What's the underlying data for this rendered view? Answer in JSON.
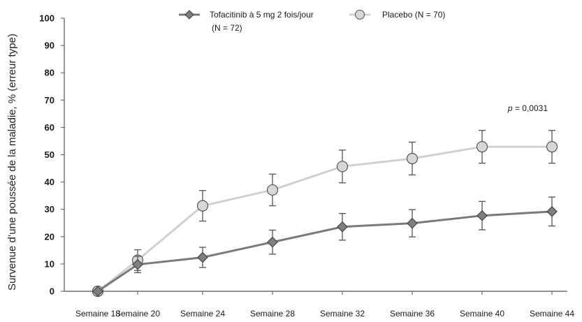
{
  "chart_data": {
    "type": "line",
    "title": "",
    "xlabel": "",
    "ylabel": "Survenue d’une poussée de la maladie, % (erreur type)",
    "ylim": [
      0,
      100
    ],
    "yticks": [
      "0",
      "10",
      "20",
      "30",
      "40",
      "50",
      "60",
      "70",
      "80",
      "90",
      "100"
    ],
    "categories": [
      "Semaine 18",
      "Semaine 20",
      "Semaine 24",
      "Semaine 28",
      "Semaine 32",
      "Semaine 36",
      "Semaine 40",
      "Semaine 44"
    ],
    "series": [
      {
        "name": "Tofacitinib à 5 mg 2 fois/jour",
        "legend_line2": "(N = 72)",
        "color": "#7a7a7a",
        "marker_fill": "#7f7f7f",
        "marker": "diamond",
        "values": [
          0,
          9.8,
          12.4,
          18.0,
          23.6,
          24.9,
          27.7,
          29.2
        ],
        "error": [
          0,
          3.0,
          3.7,
          4.4,
          4.9,
          5.0,
          5.2,
          5.3
        ]
      },
      {
        "name": "Placebo (N = 70)",
        "color": "#d0d0d0",
        "marker_fill": "#d7d7d7",
        "marker": "circle",
        "values": [
          0,
          11.4,
          31.3,
          37.1,
          45.7,
          48.6,
          52.9,
          52.9
        ],
        "error": [
          0,
          3.8,
          5.6,
          5.8,
          6.0,
          6.0,
          6.0,
          6.0
        ]
      }
    ],
    "annotation": {
      "prefix": "p",
      "text": " = 0,0031"
    },
    "legend_position": "top",
    "grid": false
  }
}
